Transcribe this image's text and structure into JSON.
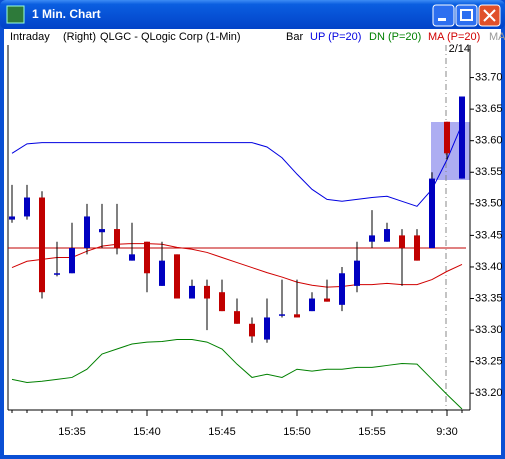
{
  "window": {
    "title": "1 Min. Chart"
  },
  "chart_data": {
    "type": "candlestick",
    "header_labels": [
      "Intraday",
      "(Right)",
      "QLGC - QLogic Corp (1-Min)",
      "Bar"
    ],
    "extra_legend": "MA",
    "date_label": "2/14",
    "categories": [
      null,
      null,
      null,
      null,
      "15:35",
      null,
      null,
      null,
      null,
      "15:40",
      null,
      null,
      null,
      null,
      "15:45",
      null,
      null,
      null,
      null,
      "15:50",
      null,
      null,
      null,
      null,
      "15:55",
      null,
      null,
      null,
      null,
      "9:30",
      null
    ],
    "open": [
      33.475,
      33.48,
      33.51,
      33.39,
      33.39,
      33.43,
      33.455,
      33.46,
      33.41,
      33.44,
      33.37,
      33.42,
      33.35,
      33.37,
      33.36,
      33.33,
      33.31,
      33.285,
      33.325,
      33.325,
      33.33,
      33.35,
      33.34,
      33.37,
      33.44,
      33.44,
      33.45,
      33.45,
      33.43,
      33.63,
      33.54
    ],
    "high": [
      33.53,
      33.53,
      33.52,
      33.44,
      33.47,
      33.5,
      33.5,
      33.5,
      33.47,
      33.44,
      33.44,
      33.42,
      33.38,
      33.38,
      33.38,
      33.35,
      33.32,
      33.35,
      33.38,
      33.38,
      33.36,
      33.38,
      33.4,
      33.44,
      33.49,
      33.47,
      33.46,
      33.46,
      33.55,
      33.63,
      33.67
    ],
    "low": [
      33.47,
      33.475,
      33.35,
      33.385,
      33.39,
      33.42,
      33.43,
      33.42,
      33.41,
      33.36,
      33.37,
      33.35,
      33.35,
      33.3,
      33.33,
      33.31,
      33.28,
      33.28,
      33.32,
      33.32,
      33.33,
      33.345,
      33.33,
      33.36,
      33.43,
      33.44,
      33.37,
      33.41,
      33.43,
      33.57,
      33.54
    ],
    "close": [
      33.48,
      33.51,
      33.36,
      33.39,
      33.43,
      33.48,
      33.46,
      33.43,
      33.42,
      33.39,
      33.41,
      33.35,
      33.37,
      33.35,
      33.33,
      33.31,
      33.29,
      33.32,
      33.325,
      33.32,
      33.35,
      33.345,
      33.39,
      33.41,
      33.45,
      33.46,
      33.43,
      33.41,
      33.54,
      33.58,
      33.67
    ],
    "up_color": "#0000c0",
    "down_color": "#c00000",
    "series": [
      {
        "name": "UP (P=20)",
        "color": "#0000e0",
        "values": [
          33.58,
          33.595,
          33.597,
          33.597,
          33.597,
          33.597,
          33.597,
          33.597,
          33.597,
          33.597,
          33.597,
          33.597,
          33.597,
          33.597,
          33.597,
          33.597,
          33.597,
          33.59,
          33.573,
          33.547,
          33.523,
          33.507,
          33.504,
          33.507,
          33.51,
          33.512,
          33.504,
          33.496,
          33.523,
          33.57,
          33.626
        ]
      },
      {
        "name": "DN (P=20)",
        "color": "#008000",
        "values": [
          33.222,
          33.217,
          33.219,
          33.222,
          33.225,
          33.238,
          33.262,
          33.27,
          33.278,
          33.281,
          33.282,
          33.285,
          33.285,
          33.281,
          33.27,
          33.246,
          33.225,
          33.23,
          33.225,
          33.238,
          33.235,
          33.238,
          33.238,
          33.241,
          33.241,
          33.244,
          33.247,
          33.246,
          33.222,
          33.198,
          33.175
        ]
      },
      {
        "name": "MA (P=20)",
        "color": "#d00000",
        "values": [
          33.399,
          33.409,
          33.412,
          33.415,
          33.415,
          33.425,
          33.433,
          33.436,
          33.437,
          33.437,
          33.436,
          33.431,
          33.428,
          33.423,
          33.415,
          33.407,
          33.399,
          33.391,
          33.384,
          33.376,
          33.371,
          33.368,
          33.369,
          33.372,
          33.372,
          33.374,
          33.372,
          33.372,
          33.38,
          33.393,
          33.404
        ]
      }
    ],
    "ref_line": {
      "value": 33.43,
      "color": "#c00000"
    },
    "ylim": [
      33.175,
      33.75
    ],
    "yticks": [
      {
        "value": 33.2,
        "label": "33.20"
      },
      33.25,
      {
        "value": 33.3,
        "label": "33.30"
      },
      33.35,
      {
        "value": 33.4,
        "label": "33.40"
      },
      33.45,
      {
        "value": 33.5,
        "label": "33.50"
      },
      33.55,
      {
        "value": 33.6,
        "label": "33.60"
      },
      33.65,
      {
        "value": 33.7,
        "label": "33.70"
      }
    ]
  }
}
